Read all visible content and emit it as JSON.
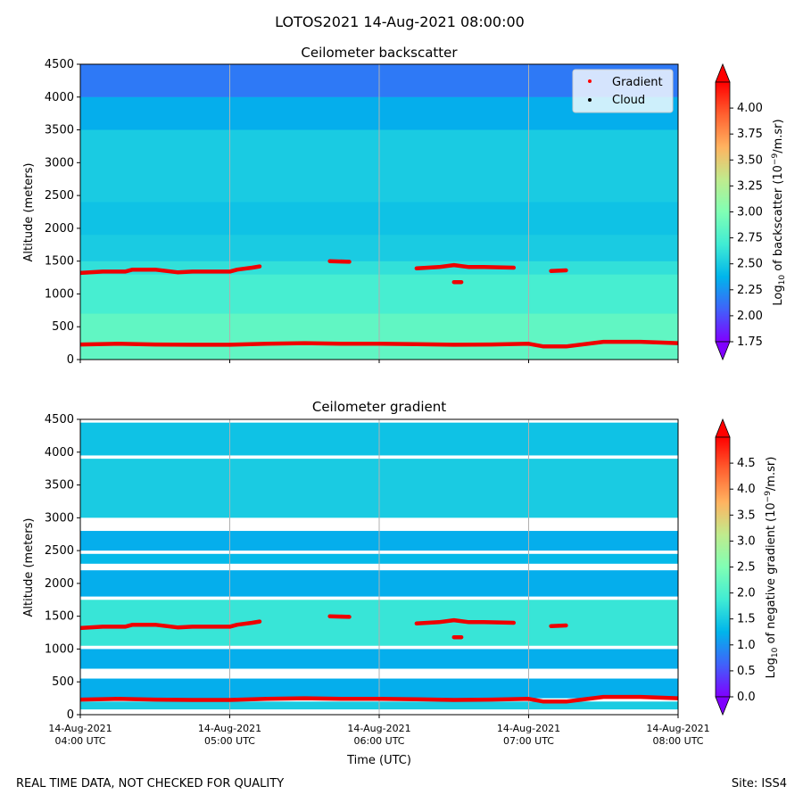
{
  "suptitle": "LOTOS2021 14-Aug-2021 08:00:00",
  "footer": {
    "left": "REAL TIME DATA, NOT CHECKED FOR QUALITY",
    "right": "Site: ISS4"
  },
  "chart_data": [
    {
      "type": "heatmap",
      "title": "Ceilometer backscatter",
      "ylabel": "Altitude (meters)",
      "xlabel": "",
      "ylim": [
        0,
        4500
      ],
      "xlim": [
        "04:00",
        "08:00"
      ],
      "yticks": [
        "0",
        "500",
        "1000",
        "1500",
        "2000",
        "2500",
        "3000",
        "3500",
        "4000",
        "4500"
      ],
      "xticks": [],
      "colorbar": {
        "label_pre": "Log",
        "label_sub": "10",
        "label_mid": " of backscatter (10",
        "label_sup": "−9",
        "label_post": "/m.sr)",
        "vmin": 1.75,
        "vmax": 4.25,
        "extend": "both",
        "ticks": [
          "1.75",
          "2.00",
          "2.25",
          "2.50",
          "2.75",
          "3.00",
          "3.25",
          "3.50",
          "3.75",
          "4.00"
        ]
      },
      "legend": {
        "location": "top-right",
        "entries": [
          {
            "label": "Gradient",
            "color": "#ff0000"
          },
          {
            "label": "Cloud",
            "color": "#000000"
          }
        ]
      },
      "bands": [
        {
          "from": 0,
          "to": 150,
          "value": 2.85
        },
        {
          "from": 150,
          "to": 700,
          "value": 2.85
        },
        {
          "from": 700,
          "to": 1300,
          "value": 2.72
        },
        {
          "from": 1300,
          "to": 1500,
          "value": 2.62
        },
        {
          "from": 1500,
          "to": 1900,
          "value": 2.5
        },
        {
          "from": 1900,
          "to": 2400,
          "value": 2.45
        },
        {
          "from": 2400,
          "to": 3500,
          "value": 2.5
        },
        {
          "from": 3500,
          "to": 4000,
          "value": 2.35
        },
        {
          "from": 4000,
          "to": 4500,
          "value": 2.15
        }
      ],
      "gradient_traces": [
        {
          "x": [
            4.0,
            4.25,
            4.5,
            4.75,
            5.0,
            5.25,
            5.5,
            5.75,
            6.0,
            6.25,
            6.5,
            6.75,
            7.0,
            7.1,
            7.25,
            7.5,
            7.75,
            8.0
          ],
          "y": [
            230,
            240,
            230,
            225,
            225,
            240,
            250,
            240,
            240,
            235,
            225,
            230,
            240,
            200,
            200,
            270,
            270,
            250
          ]
        },
        {
          "x": [
            4.0,
            4.15,
            4.3,
            4.35,
            4.5,
            4.65,
            4.75,
            5.0,
            5.05,
            5.15,
            5.2
          ],
          "y": [
            1320,
            1340,
            1340,
            1370,
            1370,
            1330,
            1340,
            1340,
            1370,
            1400,
            1420
          ]
        },
        {
          "x": [
            5.67,
            5.8
          ],
          "y": [
            1500,
            1490
          ]
        },
        {
          "x": [
            6.25,
            6.4,
            6.5,
            6.6,
            6.7,
            6.9
          ],
          "y": [
            1390,
            1410,
            1440,
            1410,
            1410,
            1400
          ]
        },
        {
          "x": [
            6.5,
            6.55
          ],
          "y": [
            1180,
            1180
          ]
        },
        {
          "x": [
            7.15,
            7.25
          ],
          "y": [
            1350,
            1360
          ]
        }
      ]
    },
    {
      "type": "heatmap",
      "title": "Ceilometer gradient",
      "ylabel": "Altitude (meters)",
      "xlabel": "Time (UTC)",
      "ylim": [
        0,
        4500
      ],
      "xlim": [
        "04:00",
        "08:00"
      ],
      "yticks": [
        "0",
        "500",
        "1000",
        "1500",
        "2000",
        "2500",
        "3000",
        "3500",
        "4000",
        "4500"
      ],
      "xticks": [
        {
          "date": "14-Aug-2021",
          "time": "04:00 UTC"
        },
        {
          "date": "14-Aug-2021",
          "time": "05:00 UTC"
        },
        {
          "date": "14-Aug-2021",
          "time": "06:00 UTC"
        },
        {
          "date": "14-Aug-2021",
          "time": "07:00 UTC"
        },
        {
          "date": "14-Aug-2021",
          "time": "08:00 UTC"
        }
      ],
      "colorbar": {
        "label_pre": "Log",
        "label_sub": "10",
        "label_mid": " of negative gradient (10",
        "label_sup": "−9",
        "label_post": "/m.sr)",
        "vmin": 0.0,
        "vmax": 5.0,
        "extend": "both",
        "ticks": [
          "0.0",
          "0.5",
          "1.0",
          "1.5",
          "2.0",
          "2.5",
          "3.0",
          "3.5",
          "4.0",
          "4.5"
        ]
      },
      "bands": [
        {
          "from": 80,
          "to": 200,
          "value": 1.5
        },
        {
          "from": 250,
          "to": 550,
          "value": 1.2
        },
        {
          "from": 700,
          "to": 1000,
          "value": 1.2
        },
        {
          "from": 1050,
          "to": 1750,
          "value": 1.8
        },
        {
          "from": 1800,
          "to": 2200,
          "value": 1.2
        },
        {
          "from": 2300,
          "to": 2450,
          "value": 1.3
        },
        {
          "from": 2500,
          "to": 2800,
          "value": 1.2
        },
        {
          "from": 3000,
          "to": 3900,
          "value": 1.5
        },
        {
          "from": 3950,
          "to": 4450,
          "value": 1.4
        }
      ],
      "gradient_traces": [
        {
          "x": [
            4.0,
            4.25,
            4.5,
            4.75,
            5.0,
            5.25,
            5.5,
            5.75,
            6.0,
            6.25,
            6.5,
            6.75,
            7.0,
            7.1,
            7.25,
            7.5,
            7.75,
            8.0
          ],
          "y": [
            230,
            240,
            230,
            225,
            225,
            240,
            250,
            240,
            240,
            235,
            225,
            230,
            240,
            200,
            200,
            270,
            270,
            250
          ]
        },
        {
          "x": [
            4.0,
            4.15,
            4.3,
            4.35,
            4.5,
            4.65,
            4.75,
            5.0,
            5.05,
            5.15,
            5.2
          ],
          "y": [
            1320,
            1340,
            1340,
            1370,
            1370,
            1330,
            1340,
            1340,
            1370,
            1400,
            1420
          ]
        },
        {
          "x": [
            5.67,
            5.8
          ],
          "y": [
            1500,
            1490
          ]
        },
        {
          "x": [
            6.25,
            6.4,
            6.5,
            6.6,
            6.7,
            6.9
          ],
          "y": [
            1390,
            1410,
            1440,
            1410,
            1410,
            1400
          ]
        },
        {
          "x": [
            6.5,
            6.55
          ],
          "y": [
            1180,
            1180
          ]
        },
        {
          "x": [
            7.15,
            7.25
          ],
          "y": [
            1350,
            1360
          ]
        }
      ]
    }
  ]
}
